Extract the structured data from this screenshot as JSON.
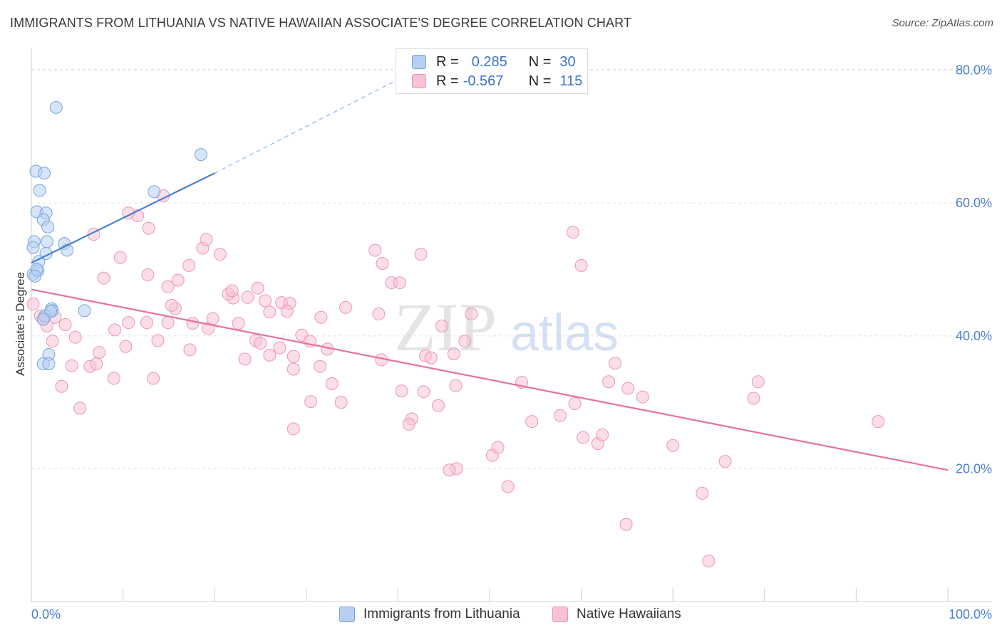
{
  "title": "IMMIGRANTS FROM LITHUANIA VS NATIVE HAWAIIAN ASSOCIATE'S DEGREE CORRELATION CHART",
  "source": "Source: ZipAtlas.com",
  "watermark": {
    "zip": "ZIP",
    "atlas": "atlas"
  },
  "colors": {
    "blue": "#4a7fcf",
    "pink": "#e8729a",
    "blue_fill": "#b7d0f2",
    "pink_fill": "#f7c3d4"
  },
  "legend": {
    "rows": [
      {
        "r_label": "R =",
        "r_value": "0.285",
        "n_label": "N =",
        "n_value": "30"
      },
      {
        "r_label": "R =",
        "r_value": "-0.567",
        "n_label": "N =",
        "n_value": "115"
      }
    ]
  },
  "bottom_legend": [
    "Immigrants from Lithuania",
    "Native Hawaiians"
  ],
  "chart_data": {
    "type": "scatter",
    "ylabel": "Associate's Degree",
    "xlim": [
      0,
      100
    ],
    "ylim": [
      0,
      82
    ],
    "x_tick_labels": [
      "0.0%",
      "100.0%"
    ],
    "y_ticks": [
      20,
      40,
      60,
      80
    ],
    "y_tick_labels": [
      "20.0%",
      "40.0%",
      "60.0%",
      "80.0%"
    ],
    "grid": true,
    "series": [
      {
        "name": "Immigrants from Lithuania",
        "color": "#4a7fcf",
        "trend": {
          "x": [
            0,
            20
          ],
          "y": [
            51.0,
            64.5
          ],
          "dashed_to": [
            42,
            80
          ]
        },
        "points": [
          [
            2.7,
            74.4
          ],
          [
            0.5,
            64.8
          ],
          [
            1.4,
            64.5
          ],
          [
            0.9,
            61.9
          ],
          [
            18.5,
            67.3
          ],
          [
            13.4,
            61.7
          ],
          [
            0.6,
            58.7
          ],
          [
            1.6,
            58.5
          ],
          [
            1.3,
            57.5
          ],
          [
            1.8,
            56.4
          ],
          [
            0.3,
            54.2
          ],
          [
            0.2,
            53.3
          ],
          [
            1.7,
            54.2
          ],
          [
            3.6,
            53.9
          ],
          [
            3.9,
            52.9
          ],
          [
            0.8,
            51.2
          ],
          [
            1.6,
            52.4
          ],
          [
            0.2,
            49.3
          ],
          [
            0.7,
            49.8
          ],
          [
            0.6,
            50.0
          ],
          [
            2.2,
            44.1
          ],
          [
            2.3,
            43.8
          ],
          [
            1.5,
            43.0
          ],
          [
            2.1,
            43.7
          ],
          [
            1.3,
            42.5
          ],
          [
            5.8,
            43.8
          ],
          [
            1.9,
            37.2
          ],
          [
            1.3,
            35.8
          ],
          [
            1.9,
            35.8
          ],
          [
            0.4,
            49.0
          ]
        ]
      },
      {
        "name": "Native Hawaiians",
        "color": "#e8729a",
        "trend": {
          "x": [
            0,
            100
          ],
          "y": [
            47.0,
            19.8
          ]
        },
        "points": [
          [
            0.2,
            44.8
          ],
          [
            1.0,
            43.0
          ],
          [
            1.3,
            42.5
          ],
          [
            2.6,
            42.8
          ],
          [
            1.7,
            41.5
          ],
          [
            3.7,
            41.7
          ],
          [
            2.3,
            39.2
          ],
          [
            4.8,
            39.8
          ],
          [
            7.4,
            37.5
          ],
          [
            4.4,
            35.5
          ],
          [
            6.4,
            35.4
          ],
          [
            7.1,
            35.8
          ],
          [
            3.3,
            32.4
          ],
          [
            5.3,
            29.1
          ],
          [
            9.0,
            33.6
          ],
          [
            13.3,
            33.6
          ],
          [
            10.3,
            38.4
          ],
          [
            13.8,
            39.3
          ],
          [
            9.1,
            40.9
          ],
          [
            10.6,
            42.0
          ],
          [
            12.6,
            42.0
          ],
          [
            14.9,
            42.0
          ],
          [
            17.6,
            41.9
          ],
          [
            17.3,
            37.9
          ],
          [
            19.3,
            41.1
          ],
          [
            19.8,
            42.6
          ],
          [
            22.6,
            41.9
          ],
          [
            23.3,
            36.5
          ],
          [
            26.0,
            37.1
          ],
          [
            24.5,
            39.3
          ],
          [
            25.0,
            38.9
          ],
          [
            27.1,
            38.2
          ],
          [
            29.5,
            40.1
          ],
          [
            28.6,
            36.9
          ],
          [
            28.6,
            35.0
          ],
          [
            31.5,
            35.4
          ],
          [
            32.3,
            38.0
          ],
          [
            31.6,
            42.8
          ],
          [
            30.4,
            39.2
          ],
          [
            25.5,
            45.3
          ],
          [
            27.3,
            45.0
          ],
          [
            28.2,
            44.9
          ],
          [
            23.6,
            45.8
          ],
          [
            24.7,
            47.2
          ],
          [
            26.0,
            43.6
          ],
          [
            27.9,
            43.7
          ],
          [
            22.0,
            45.7
          ],
          [
            21.5,
            46.3
          ],
          [
            21.9,
            46.8
          ],
          [
            18.7,
            53.2
          ],
          [
            20.6,
            52.3
          ],
          [
            19.1,
            54.5
          ],
          [
            17.2,
            50.6
          ],
          [
            16.0,
            48.4
          ],
          [
            14.9,
            47.4
          ],
          [
            15.7,
            44.1
          ],
          [
            15.3,
            44.6
          ],
          [
            12.7,
            49.2
          ],
          [
            11.6,
            58.1
          ],
          [
            10.6,
            58.5
          ],
          [
            12.8,
            56.2
          ],
          [
            14.4,
            61.1
          ],
          [
            7.9,
            48.7
          ],
          [
            6.8,
            55.3
          ],
          [
            9.7,
            51.8
          ],
          [
            32.8,
            32.8
          ],
          [
            33.8,
            30.0
          ],
          [
            30.5,
            30.1
          ],
          [
            28.6,
            26.0
          ],
          [
            34.3,
            44.3
          ],
          [
            37.5,
            52.9
          ],
          [
            38.3,
            50.9
          ],
          [
            39.3,
            48.0
          ],
          [
            40.2,
            48.0
          ],
          [
            42.5,
            52.3
          ],
          [
            37.9,
            43.3
          ],
          [
            38.2,
            36.4
          ],
          [
            40.4,
            31.7
          ],
          [
            41.5,
            27.5
          ],
          [
            41.2,
            26.7
          ],
          [
            43.0,
            37.0
          ],
          [
            43.6,
            36.7
          ],
          [
            42.8,
            31.6
          ],
          [
            44.4,
            29.5
          ],
          [
            46.1,
            37.3
          ],
          [
            44.8,
            41.5
          ],
          [
            47.3,
            39.2
          ],
          [
            46.3,
            32.5
          ],
          [
            48.0,
            43.3
          ],
          [
            46.4,
            20.0
          ],
          [
            45.6,
            19.8
          ],
          [
            50.3,
            22.0
          ],
          [
            50.9,
            23.2
          ],
          [
            52.0,
            17.3
          ],
          [
            53.5,
            33.0
          ],
          [
            54.6,
            27.1
          ],
          [
            57.7,
            28.0
          ],
          [
            59.3,
            29.8
          ],
          [
            60.2,
            24.7
          ],
          [
            59.1,
            55.6
          ],
          [
            60.0,
            50.6
          ],
          [
            61.8,
            23.8
          ],
          [
            62.3,
            25.1
          ],
          [
            63.0,
            33.1
          ],
          [
            63.7,
            35.9
          ],
          [
            65.1,
            32.1
          ],
          [
            66.7,
            30.8
          ],
          [
            64.9,
            11.6
          ],
          [
            70.0,
            23.5
          ],
          [
            73.2,
            16.3
          ],
          [
            75.7,
            21.1
          ],
          [
            73.9,
            6.1
          ],
          [
            78.8,
            30.6
          ],
          [
            79.3,
            33.1
          ],
          [
            92.4,
            27.1
          ]
        ]
      }
    ]
  }
}
